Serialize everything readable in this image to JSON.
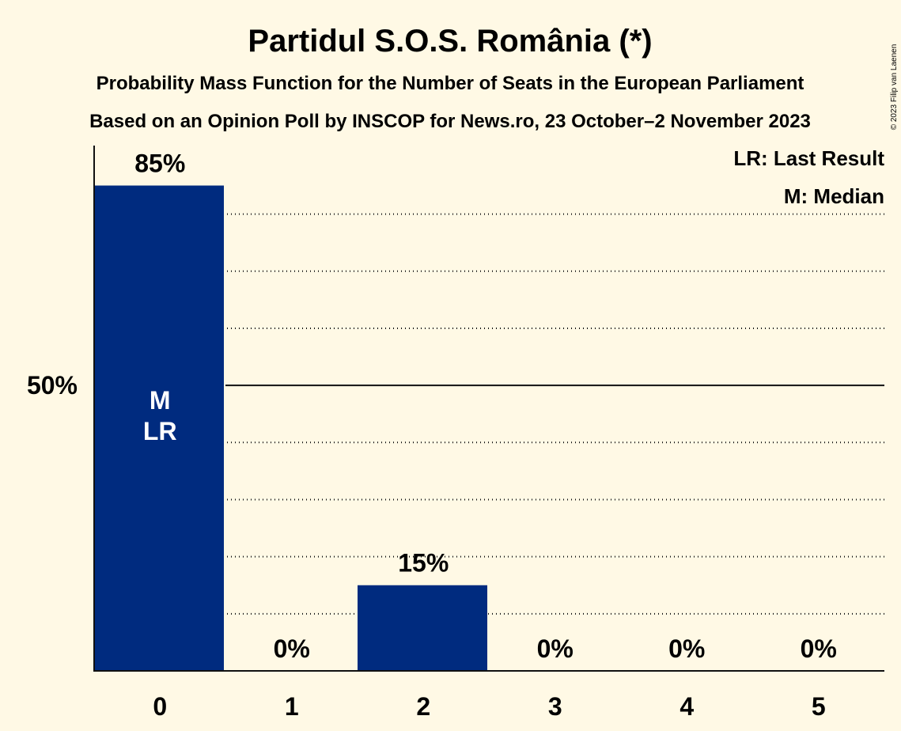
{
  "copyright": "© 2023 Filip van Laenen",
  "colors": {
    "background": "#fff9e5",
    "bar": "#002b7f",
    "inside_label": "#ffffff",
    "text": "#111111"
  },
  "chart_data": {
    "type": "bar",
    "title": "Partidul S.O.S. România (*)",
    "subtitles": [
      "Probability Mass Function for the Number of Seats in the European Parliament",
      "Based on an Opinion Poll by INSCOP for News.ro, 23 October–2 November 2023"
    ],
    "categories": [
      "0",
      "1",
      "2",
      "3",
      "4",
      "5"
    ],
    "values": [
      85,
      0,
      15,
      0,
      0,
      0
    ],
    "value_labels": [
      "85%",
      "0%",
      "15%",
      "0%",
      "0%",
      "0%"
    ],
    "ylim": [
      0,
      92
    ],
    "y_ticks": [
      {
        "value": 50,
        "label": "50%"
      }
    ],
    "gridlines": [
      10,
      20,
      30,
      40,
      60,
      70,
      80
    ],
    "median_category": "0",
    "last_result_category": "0",
    "median_marker": "M",
    "last_result_marker": "LR",
    "legend": [
      "LR: Last Result",
      "M: Median"
    ],
    "legend_position": "top-right"
  }
}
